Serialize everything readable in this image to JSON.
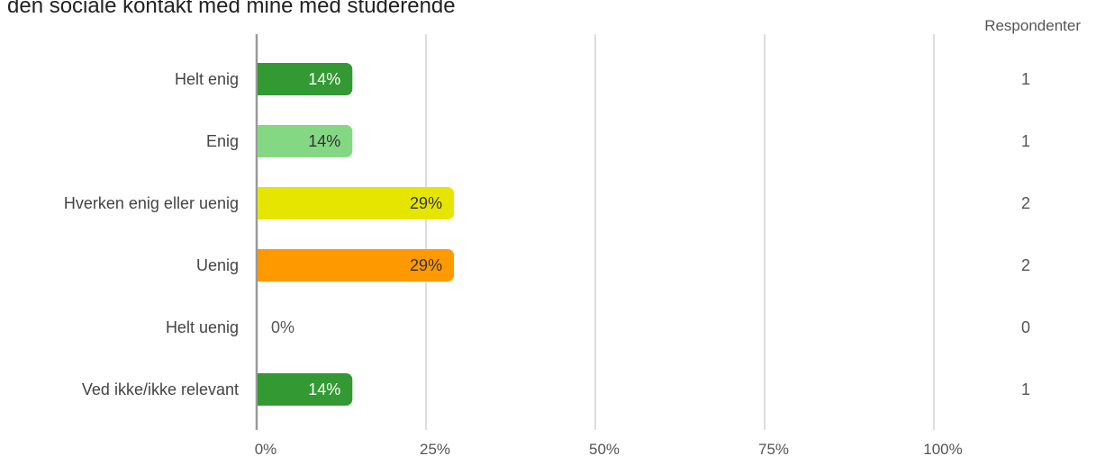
{
  "chart_data": {
    "type": "bar",
    "orientation": "horizontal",
    "title": "den sociale kontakt med mine med studerende",
    "categories": [
      "Helt enig",
      "Enig",
      "Hverken enig eller uenig",
      "Uenig",
      "Helt uenig",
      "Ved ikke/ikke relevant"
    ],
    "values": [
      14,
      14,
      29,
      29,
      0,
      14
    ],
    "value_labels": [
      "14%",
      "14%",
      "29%",
      "29%",
      "0%",
      "14%"
    ],
    "colors": [
      "#339933",
      "#84d884",
      "#e5e500",
      "#ff9900",
      "#cccccc",
      "#339933"
    ],
    "label_colors": [
      "#ffffff",
      "#333333",
      "#333333",
      "#333333",
      "#555555",
      "#ffffff"
    ],
    "xlim": [
      0,
      100
    ],
    "x_ticks": [
      0,
      25,
      50,
      75,
      100
    ],
    "x_tick_labels": [
      "0%",
      "25%",
      "50%",
      "75%",
      "100%"
    ],
    "grid": true,
    "respondents_header": "Respondenter",
    "respondents": [
      "1",
      "1",
      "2",
      "2",
      "0",
      "1"
    ]
  }
}
